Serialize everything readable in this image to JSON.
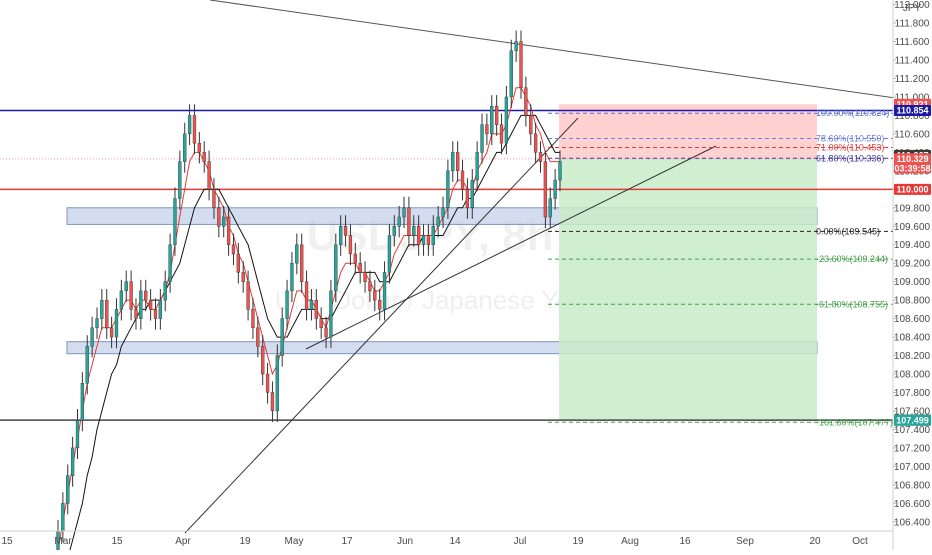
{
  "chart_data": {
    "type": "candlestick",
    "symbol": "USDJPY",
    "interval": "8h",
    "watermark_subtitle": "U.S. Dollar / Japanese Yen",
    "currency_label": "JPY",
    "y_ticks": [
      106.4,
      106.6,
      106.8,
      107.0,
      107.2,
      107.4,
      107.6,
      107.8,
      108.0,
      108.2,
      108.4,
      108.6,
      108.8,
      109.0,
      109.2,
      109.4,
      109.6,
      109.8,
      110.0,
      110.2,
      110.4,
      110.6,
      110.8,
      111.0,
      111.2,
      111.4,
      111.6,
      111.8,
      112.0
    ],
    "ylim": [
      106.3,
      112.05
    ],
    "x_ticks": [
      "15",
      "Mar",
      "15",
      "Apr",
      "19",
      "May",
      "17",
      "Jun",
      "14",
      "Jul",
      "19",
      "Aug",
      "16",
      "Sep",
      "20",
      "Oct"
    ],
    "closes": [
      106.3,
      106.6,
      106.9,
      107.2,
      107.5,
      107.9,
      108.3,
      108.5,
      108.6,
      108.8,
      108.5,
      108.4,
      108.7,
      108.9,
      109.0,
      108.7,
      108.6,
      108.9,
      108.8,
      108.7,
      108.6,
      108.8,
      109.0,
      109.4,
      109.9,
      110.3,
      110.6,
      110.8,
      110.5,
      110.4,
      110.3,
      110.0,
      109.8,
      109.6,
      109.7,
      109.4,
      109.3,
      109.1,
      109.0,
      108.7,
      108.5,
      108.3,
      108.0,
      107.8,
      107.6,
      108.2,
      108.6,
      108.9,
      109.2,
      109.4,
      109.0,
      108.7,
      108.8,
      108.6,
      108.5,
      108.4,
      108.9,
      109.4,
      109.6,
      109.5,
      109.3,
      109.2,
      109.1,
      109.0,
      108.9,
      108.8,
      108.7,
      109.1,
      109.5,
      109.6,
      109.7,
      109.8,
      109.5,
      109.6,
      109.4,
      109.5,
      109.4,
      109.6,
      109.7,
      109.8,
      110.2,
      110.4,
      110.2,
      110.0,
      109.8,
      110.1,
      110.4,
      110.7,
      110.6,
      110.9,
      110.7,
      110.5,
      111.0,
      111.5,
      111.6,
      111.1,
      110.8,
      110.6,
      110.4,
      110.3,
      109.7,
      109.9,
      110.1,
      110.3
    ],
    "ma_fast": [
      106.1,
      106.4,
      106.7,
      107.0,
      107.3,
      107.6,
      107.9,
      108.1,
      108.3,
      108.5,
      108.5,
      108.5,
      108.6,
      108.7,
      108.8,
      108.8,
      108.7,
      108.8,
      108.8,
      108.7,
      108.7,
      108.8,
      108.9,
      109.1,
      109.4,
      109.7,
      110.0,
      110.3,
      110.4,
      110.4,
      110.3,
      110.2,
      110.0,
      109.9,
      109.8,
      109.6,
      109.5,
      109.3,
      109.2,
      109.0,
      108.8,
      108.6,
      108.4,
      108.2,
      108.0,
      108.1,
      108.3,
      108.5,
      108.7,
      108.9,
      108.9,
      108.8,
      108.8,
      108.7,
      108.6,
      108.5,
      108.7,
      108.9,
      109.1,
      109.2,
      109.2,
      109.2,
      109.1,
      109.1,
      109.0,
      108.9,
      108.9,
      109.0,
      109.1,
      109.3,
      109.4,
      109.5,
      109.5,
      109.5,
      109.5,
      109.5,
      109.5,
      109.5,
      109.6,
      109.7,
      109.8,
      110.0,
      110.1,
      110.1,
      110.0,
      110.0,
      110.2,
      110.3,
      110.4,
      110.6,
      110.6,
      110.6,
      110.7,
      110.9,
      111.1,
      111.1,
      111.0,
      110.9,
      110.7,
      110.6,
      110.4,
      110.3,
      110.3,
      110.3
    ],
    "ma_slow": [
      105.8,
      105.9,
      106.0,
      106.2,
      106.4,
      106.6,
      106.9,
      107.1,
      107.4,
      107.6,
      107.8,
      108.0,
      108.1,
      108.3,
      108.4,
      108.5,
      108.6,
      108.7,
      108.7,
      108.8,
      108.8,
      108.8,
      108.9,
      109.0,
      109.1,
      109.2,
      109.4,
      109.6,
      109.8,
      109.9,
      110.0,
      110.0,
      110.0,
      110.0,
      109.9,
      109.8,
      109.7,
      109.6,
      109.5,
      109.4,
      109.2,
      109.0,
      108.8,
      108.6,
      108.5,
      108.4,
      108.4,
      108.4,
      108.5,
      108.6,
      108.7,
      108.7,
      108.7,
      108.7,
      108.6,
      108.6,
      108.6,
      108.7,
      108.8,
      108.9,
      109.0,
      109.1,
      109.1,
      109.1,
      109.1,
      109.1,
      109.0,
      109.0,
      109.0,
      109.1,
      109.2,
      109.3,
      109.4,
      109.4,
      109.4,
      109.5,
      109.5,
      109.5,
      109.5,
      109.5,
      109.6,
      109.7,
      109.8,
      109.8,
      109.9,
      109.9,
      110.0,
      110.1,
      110.2,
      110.3,
      110.4,
      110.4,
      110.5,
      110.6,
      110.7,
      110.8,
      110.8,
      110.8,
      110.8,
      110.7,
      110.6,
      110.5,
      110.4,
      110.4
    ],
    "horizontal_levels": [
      {
        "price": 110.854,
        "color": "#1a1aa6"
      },
      {
        "price": 110.0,
        "color": "#e53935"
      },
      {
        "price": 107.5,
        "color": "#444444"
      }
    ],
    "zones": [
      {
        "top": 109.8,
        "bottom": 109.62,
        "color": "#c5d2ea"
      },
      {
        "top": 108.35,
        "bottom": 108.22,
        "color": "#c5d2ea"
      }
    ],
    "position": {
      "stop": 110.921,
      "entry": 110.329,
      "target": 107.499
    },
    "fibonacci": [
      {
        "label": "100.00%(110.824)",
        "price": 110.824,
        "color": "#5b6ad0"
      },
      {
        "label": "78.60%(110.550)",
        "price": 110.55,
        "color": "#6b7dde"
      },
      {
        "label": "71.00%(110.453)",
        "price": 110.453,
        "color": "#e53935"
      },
      {
        "label": "61.80%(110.336)",
        "price": 110.336,
        "color": "#3a3aa0"
      },
      {
        "label": "0.00%(109.545)",
        "price": 109.545,
        "color": "#222222"
      },
      {
        "label": "-23.60%(109.244)",
        "price": 109.244,
        "color": "#43a047"
      },
      {
        "label": "-61.80%(108.755)",
        "price": 108.755,
        "color": "#43a047"
      },
      {
        "label": "-161.80%(107.477)",
        "price": 107.477,
        "color": "#43a047"
      }
    ],
    "price_tags": [
      {
        "text": "110.921",
        "price": 110.921,
        "color": "#ef5350"
      },
      {
        "text": "110.854",
        "price": 110.854,
        "color": "#1a1aa6"
      },
      {
        "text": "110.367",
        "price": 110.367,
        "color": "#3a3a3a"
      },
      {
        "text": "110.329",
        "price": 110.329,
        "color": "#ef5350",
        "sub": "03:39:58"
      },
      {
        "text": "110.000",
        "price": 110.0,
        "color": "#e53935"
      },
      {
        "text": "107.500",
        "price": 107.5,
        "color": "#333333"
      },
      {
        "text": "107.499",
        "price": 107.499,
        "color": "#26a69a"
      }
    ]
  }
}
